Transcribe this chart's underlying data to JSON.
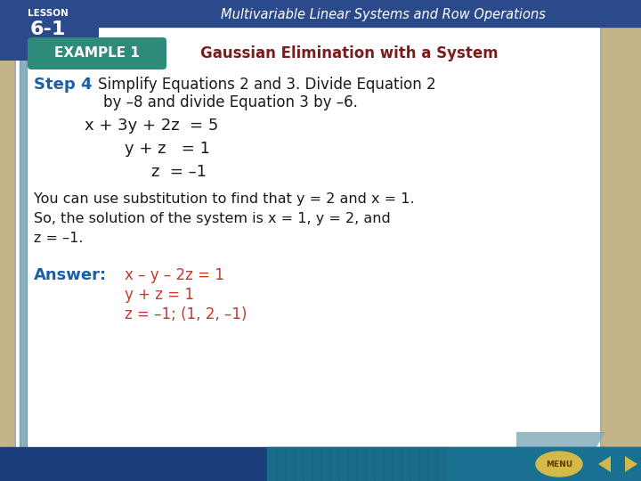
{
  "bg_color": "#c4b48a",
  "slide_bg": "#ffffff",
  "top_bar_color": "#2b4a8c",
  "top_bar_text": "Multivariable Linear Systems and Row Operations",
  "top_bar_text_color": "#ffffff",
  "lesson_bg": "#2b4a8c",
  "bottom_bar_color1": "#1a4080",
  "bottom_bar_color2": "#1a8090",
  "header_bg": "#2e8b7a",
  "header_text": "EXAMPLE 1",
  "header_text_color": "#ffffff",
  "title_text": "Gaussian Elimination with a System",
  "title_color": "#7b1c1c",
  "step_label": "Step 4",
  "step_label_color": "#1a5fa8",
  "step_line1": "Simplify Equations 2 and 3. Divide Equation 2",
  "step_line2": "by –8 and divide Equation 3 by –6.",
  "step_text_color": "#1a1a1a",
  "eq1": "x + 3y + 2z  = 5",
  "eq2": "y + z   = 1",
  "eq3": "z  = –1",
  "eq_color": "#1a1a1a",
  "body_line1a": "You can use substitution to find that ",
  "body_line1b": "y",
  "body_line1c": " = 2 and ",
  "body_line1d": "x",
  "body_line1e": " = 1.",
  "body_line2a": "So, the solution of the system is ",
  "body_line2b": "x",
  "body_line2c": " = 1, ",
  "body_line2d": "y",
  "body_line2e": " = 2, and",
  "body_line3": "z = –1.",
  "body_color": "#1a1a1a",
  "answer_label": "Answer:",
  "answer_label_color": "#1a5fa8",
  "answer_line1": "x – y – 2z = 1",
  "answer_line2": "y + z = 1",
  "answer_line3": "z = –1; (1, 2, –1)",
  "answer_color": "#c0392b",
  "menu_gold": "#d4b84a",
  "slide_border_color": "#aaaaaa",
  "left_bar_color": "#5b8fa0"
}
